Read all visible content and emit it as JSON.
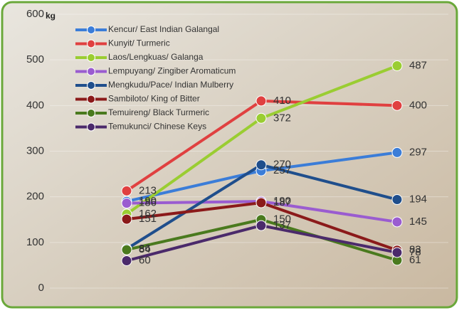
{
  "chart_data": {
    "type": "line",
    "y_unit": "kg",
    "categories": [
      null,
      null,
      null
    ],
    "ylim": [
      0,
      600
    ],
    "yticks": [
      0,
      100,
      200,
      300,
      400,
      500,
      600
    ],
    "series": [
      {
        "name": "Kencur/ East Indian Galangal",
        "color": "#3b7dd8",
        "values": [
          190,
          257,
          297
        ]
      },
      {
        "name": "Kunyit/ Turmeric",
        "color": "#e04040",
        "values": [
          213,
          410,
          400
        ]
      },
      {
        "name": "Laos/Lengkuas/ Galanga",
        "color": "#9acd32",
        "values": [
          162,
          372,
          487
        ]
      },
      {
        "name": "Lempuyang/ Zingiber Aromaticum",
        "color": "#9a5cd0",
        "values": [
          186,
          190,
          145
        ]
      },
      {
        "name": "Mengkudu/Pace/ Indian Mulberry",
        "color": "#1f4e8c",
        "values": [
          86,
          270,
          194
        ]
      },
      {
        "name": "Sambiloto/ King of Bitter",
        "color": "#8b1a1a",
        "values": [
          151,
          187,
          83
        ]
      },
      {
        "name": "Temuireng/ Black Turmeric",
        "color": "#4a7a1e",
        "values": [
          84,
          150,
          61
        ]
      },
      {
        "name": "Temukunci/ Chinese Keys",
        "color": "#4b2a6b",
        "values": [
          60,
          137,
          78
        ]
      }
    ]
  }
}
